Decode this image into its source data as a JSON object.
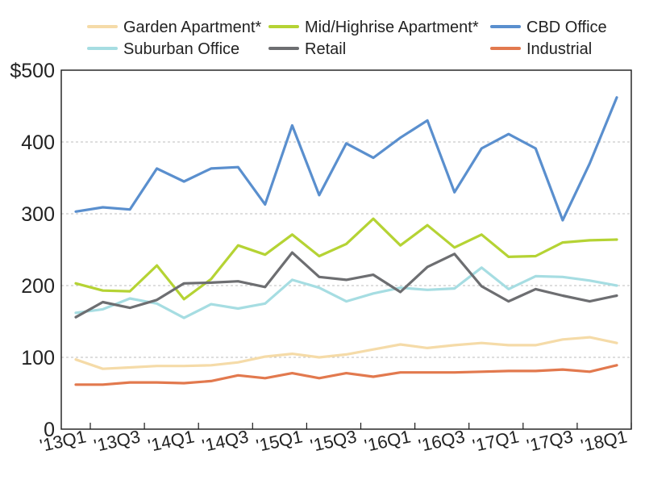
{
  "chart_data": {
    "type": "line",
    "title": "",
    "xlabel": "",
    "ylabel": "",
    "ylim": [
      0,
      500
    ],
    "yticks": [
      0,
      100,
      200,
      300,
      400,
      500
    ],
    "ytick_labels": [
      "0",
      "100",
      "200",
      "300",
      "400",
      "$500"
    ],
    "grid": "horizontal dashed",
    "legend_position": "top",
    "x": [
      "'13Q1",
      "'13Q2",
      "'13Q3",
      "'13Q4",
      "'14Q1",
      "'14Q2",
      "'14Q3",
      "'14Q4",
      "'15Q1",
      "'15Q2",
      "'15Q3",
      "'15Q4",
      "'16Q1",
      "'16Q2",
      "'16Q3",
      "'16Q4",
      "'17Q1",
      "'17Q2",
      "'17Q3",
      "'17Q4",
      "'18Q1"
    ],
    "xtick_labels": [
      "'13Q1",
      "'13Q3",
      "'14Q1",
      "'14Q3",
      "'15Q1",
      "'15Q3",
      "'16Q1",
      "'16Q3",
      "'17Q1",
      "'17Q3",
      "'18Q1"
    ],
    "series": [
      {
        "name": "Garden Apartment*",
        "color": "#f5dba8",
        "values": [
          97,
          84,
          86,
          88,
          88,
          89,
          93,
          101,
          105,
          100,
          104,
          111,
          118,
          113,
          117,
          120,
          117,
          117,
          125,
          128,
          120
        ]
      },
      {
        "name": "Mid/Highrise Apartment*",
        "color": "#b5d334",
        "values": [
          203,
          193,
          192,
          228,
          181,
          209,
          256,
          243,
          271,
          241,
          258,
          293,
          256,
          284,
          253,
          271,
          240,
          241,
          260,
          263,
          264
        ]
      },
      {
        "name": "CBD Office",
        "color": "#5a8fce",
        "values": [
          303,
          309,
          306,
          363,
          345,
          363,
          365,
          313,
          423,
          326,
          398,
          378,
          406,
          430,
          330,
          391,
          411,
          391,
          291,
          370,
          462
        ]
      },
      {
        "name": "Suburban Office",
        "color": "#a6dde2",
        "values": [
          162,
          167,
          182,
          175,
          155,
          174,
          168,
          175,
          208,
          197,
          178,
          189,
          197,
          194,
          196,
          225,
          195,
          213,
          212,
          207,
          200
        ]
      },
      {
        "name": "Retail",
        "color": "#6d6e71",
        "values": [
          156,
          177,
          169,
          180,
          203,
          204,
          206,
          198,
          246,
          212,
          208,
          215,
          191,
          226,
          244,
          199,
          178,
          195,
          186,
          178,
          186
        ]
      },
      {
        "name": "Industrial",
        "color": "#e2794e",
        "values": [
          62,
          62,
          65,
          65,
          64,
          67,
          75,
          71,
          78,
          71,
          78,
          73,
          79,
          79,
          79,
          80,
          81,
          81,
          83,
          80,
          89
        ]
      }
    ]
  }
}
